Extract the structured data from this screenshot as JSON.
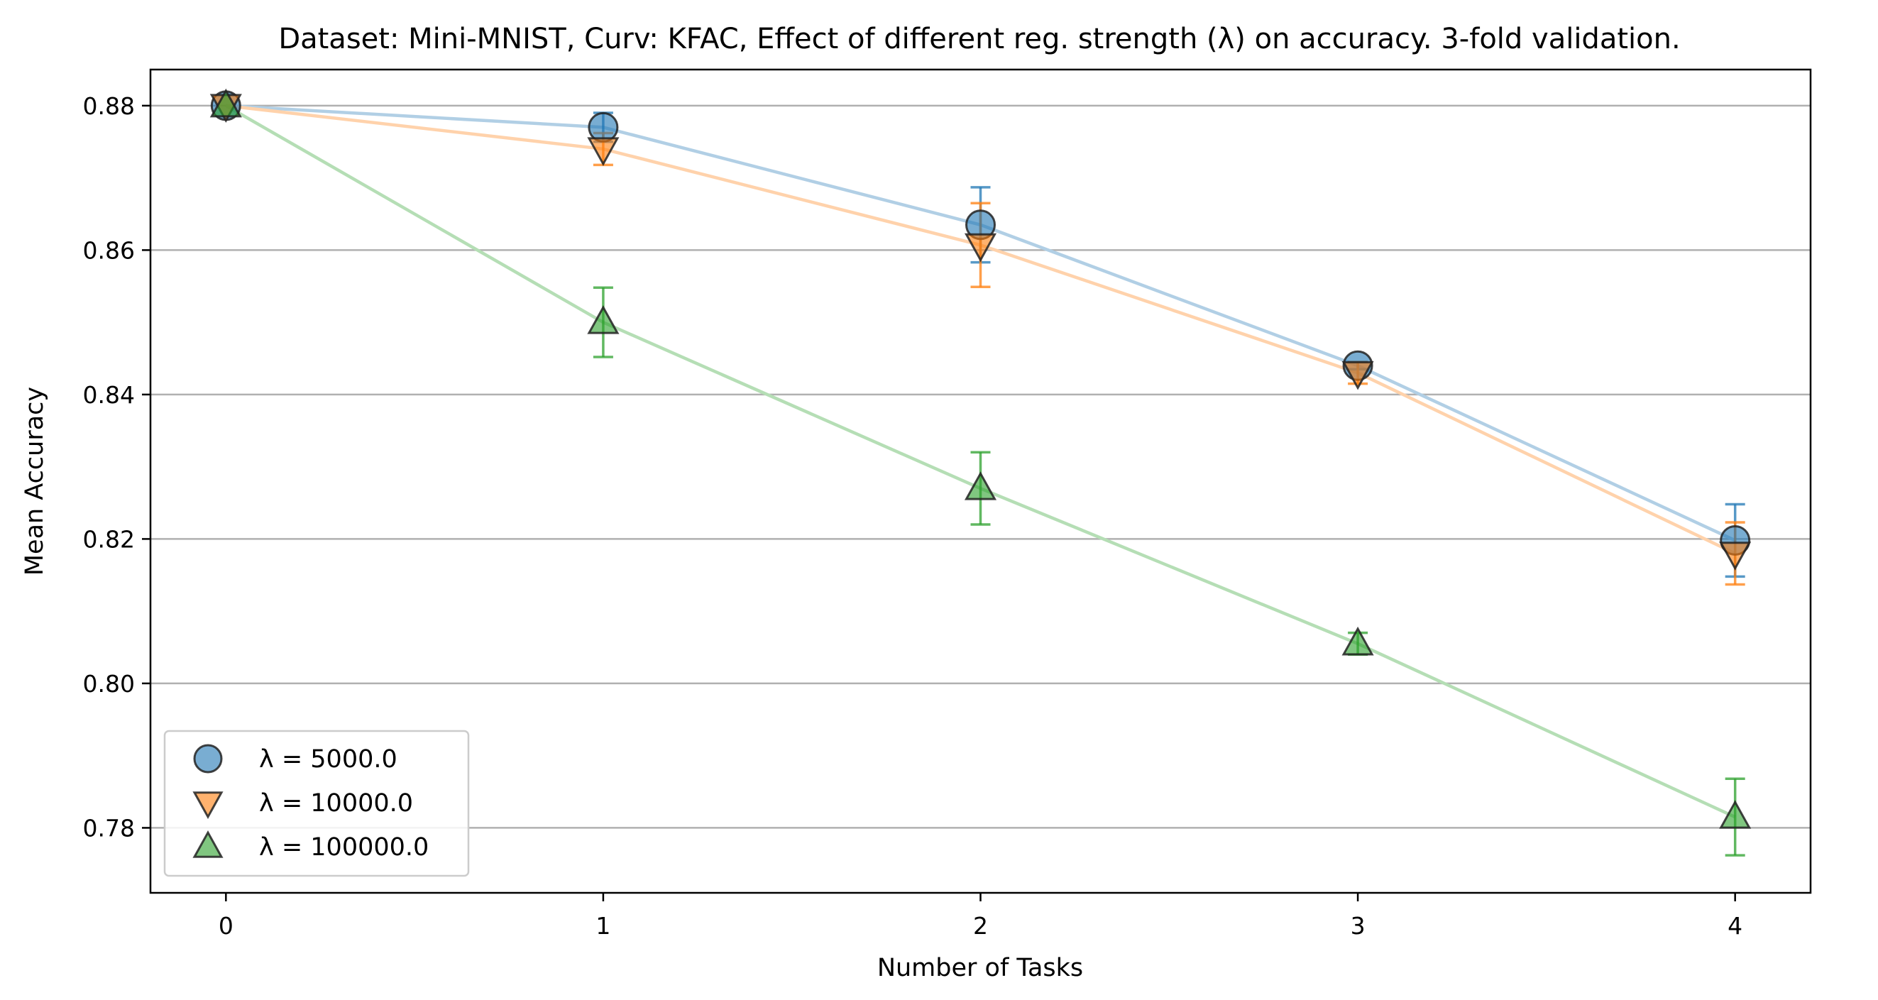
{
  "chart_data": {
    "type": "line",
    "title": "Dataset: Mini-MNIST, Curv: KFAC, Effect of different reg. strength (λ) on accuracy. 3-fold validation.",
    "xlabel": "Number of Tasks",
    "ylabel": "Mean Accuracy",
    "x": [
      0,
      1,
      2,
      3,
      4
    ],
    "xlim": [
      -0.2,
      4.2
    ],
    "ylim": [
      0.771,
      0.885
    ],
    "xticks": [
      0,
      1,
      2,
      3,
      4
    ],
    "xtick_labels": [
      "0",
      "1",
      "2",
      "3",
      "4"
    ],
    "yticks": [
      0.78,
      0.8,
      0.82,
      0.84,
      0.86,
      0.88
    ],
    "ytick_labels": [
      "0.78",
      "0.80",
      "0.82",
      "0.84",
      "0.86",
      "0.88"
    ],
    "grid": "horizontal",
    "legend_position": "lower-left",
    "series": [
      {
        "name": "λ = 5000.0",
        "marker": "circle",
        "color": "#1f77b4",
        "values": [
          0.88,
          0.877,
          0.8635,
          0.844,
          0.8198
        ],
        "errors": [
          0.0,
          0.002,
          0.0052,
          0.0005,
          0.005
        ]
      },
      {
        "name": "λ = 10000.0",
        "marker": "triangle-down",
        "color": "#ff7f0e",
        "values": [
          0.88,
          0.874,
          0.8607,
          0.843,
          0.818
        ],
        "errors": [
          0.0,
          0.0022,
          0.0058,
          0.0015,
          0.0043
        ]
      },
      {
        "name": "λ = 100000.0",
        "marker": "triangle-up",
        "color": "#2ca02c",
        "values": [
          0.88,
          0.85,
          0.827,
          0.8055,
          0.7815
        ],
        "errors": [
          0.0,
          0.0048,
          0.005,
          0.0015,
          0.0053
        ]
      }
    ]
  }
}
